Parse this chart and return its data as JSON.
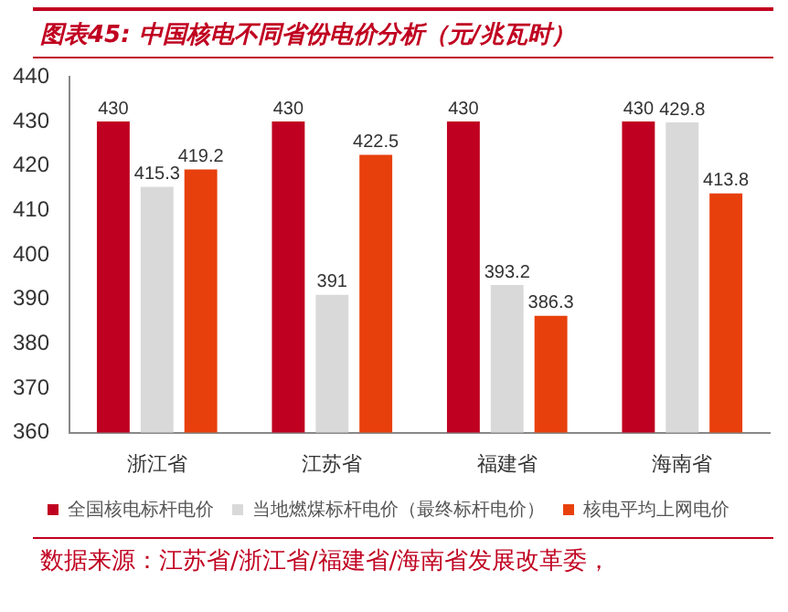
{
  "chart_data": {
    "type": "bar",
    "title": "图表45:  中国核电不同省份电价分析（元/兆瓦时）",
    "categories": [
      "浙江省",
      "江苏省",
      "福建省",
      "海南省"
    ],
    "series": [
      {
        "name": "全国核电标杆电价",
        "color": "#c00020",
        "values": [
          430,
          430,
          430,
          430
        ]
      },
      {
        "name": "当地燃煤标杆电价（最终标杆电价）",
        "color": "#d9d9d9",
        "values": [
          415.3,
          391,
          393.2,
          429.8
        ]
      },
      {
        "name": "核电平均上网电价",
        "color": "#e8400c",
        "values": [
          419.2,
          422.5,
          386.3,
          413.8
        ]
      }
    ],
    "ylim": [
      360,
      440
    ],
    "yticks": [
      360,
      370,
      380,
      390,
      400,
      410,
      420,
      430,
      440
    ],
    "grid": false,
    "legend": "bottom",
    "data_labels": true,
    "annotations": [
      "数据来源：江苏省/浙江省/福建省/海南省发展改革委，"
    ]
  }
}
